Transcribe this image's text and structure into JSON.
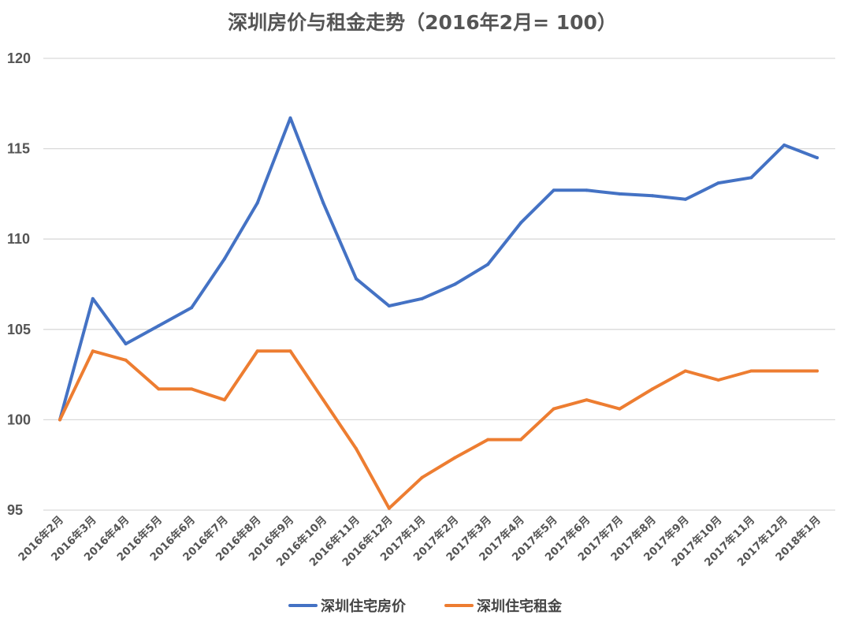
{
  "chart_data": {
    "type": "line",
    "title": "深圳房价与租金走势（2016年2月= 100）",
    "xlabel": "",
    "ylabel": "",
    "ylim": [
      95,
      120
    ],
    "yticks": [
      95,
      100,
      105,
      110,
      115,
      120
    ],
    "grid": true,
    "legend_position": "bottom",
    "categories": [
      "2016年2月",
      "2016年3月",
      "2016年4月",
      "2016年5月",
      "2016年6月",
      "2016年7月",
      "2016年8月",
      "2016年9月",
      "2016年10月",
      "2016年11月",
      "2016年12月",
      "2017年1月",
      "2017年2月",
      "2017年3月",
      "2017年4月",
      "2017年5月",
      "2017年6月",
      "2017年7月",
      "2017年8月",
      "2017年9月",
      "2017年10月",
      "2017年11月",
      "2017年12月",
      "2018年1月"
    ],
    "series": [
      {
        "name": "深圳住宅房价",
        "color": "#4472c4",
        "values": [
          100,
          106.7,
          104.2,
          105.2,
          106.2,
          108.9,
          112.0,
          116.7,
          112.0,
          107.8,
          106.3,
          106.7,
          107.5,
          108.6,
          110.9,
          112.7,
          112.7,
          112.5,
          112.4,
          112.2,
          113.1,
          113.4,
          115.2,
          114.5
        ]
      },
      {
        "name": "深圳住宅租金",
        "color": "#ed7d31",
        "values": [
          100,
          103.8,
          103.3,
          101.7,
          101.7,
          101.1,
          103.8,
          103.8,
          101.1,
          98.4,
          95.1,
          96.8,
          97.9,
          98.9,
          98.9,
          100.6,
          101.1,
          100.6,
          101.7,
          102.7,
          102.2,
          102.7,
          102.7,
          102.7
        ]
      }
    ]
  }
}
